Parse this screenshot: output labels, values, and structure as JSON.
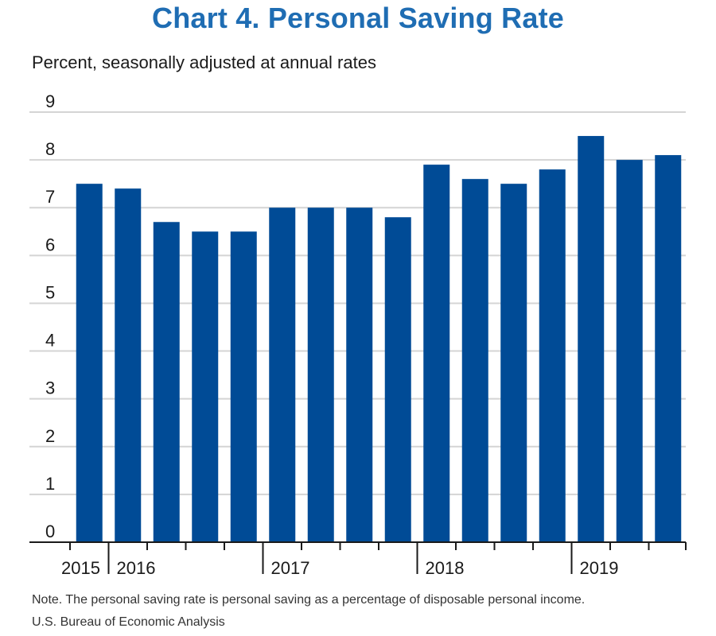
{
  "chart_data": {
    "type": "bar",
    "title": "Chart 4. Personal Saving Rate",
    "ylabel": "Percent, seasonally adjusted at annual rates",
    "xlabel": "",
    "ylim": [
      0,
      9
    ],
    "y_ticks": [
      "0",
      "1",
      "2",
      "3",
      "4",
      "5",
      "6",
      "7",
      "8",
      "9"
    ],
    "grid": true,
    "categories": [
      "2015 Q4",
      "2016 Q1",
      "2016 Q2",
      "2016 Q3",
      "2016 Q4",
      "2017 Q1",
      "2017 Q2",
      "2017 Q3",
      "2017 Q4",
      "2018 Q1",
      "2018 Q2",
      "2018 Q3",
      "2018 Q4",
      "2019 Q1",
      "2019 Q2",
      "2019 Q3"
    ],
    "values": [
      7.5,
      7.4,
      6.7,
      6.5,
      6.5,
      7.0,
      7.0,
      7.0,
      6.8,
      7.9,
      7.6,
      7.5,
      7.8,
      8.5,
      8.0,
      8.1
    ],
    "x_year_labels": [
      {
        "label": "2015",
        "first_index": 0,
        "count": 1
      },
      {
        "label": "2016",
        "first_index": 1,
        "count": 4
      },
      {
        "label": "2017",
        "first_index": 5,
        "count": 4
      },
      {
        "label": "2018",
        "first_index": 9,
        "count": 4
      },
      {
        "label": "2019",
        "first_index": 13,
        "count": 3
      }
    ],
    "bar_color": "#004b96",
    "grid_color": "#d4d4d4",
    "title_color": "#1f6db3"
  },
  "footer": {
    "note": "Note. The personal saving rate is personal saving as a percentage of disposable personal income.",
    "source": "U.S. Bureau of Economic Analysis"
  }
}
